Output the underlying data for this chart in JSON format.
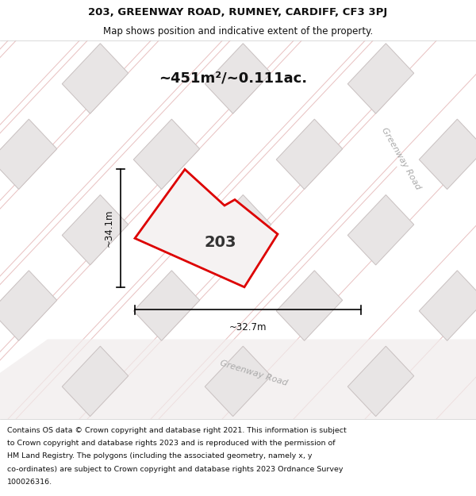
{
  "title_line1": "203, GREENWAY ROAD, RUMNEY, CARDIFF, CF3 3PJ",
  "title_line2": "Map shows position and indicative extent of the property.",
  "footer_lines": [
    "Contains OS data © Crown copyright and database right 2021. This information is subject",
    "to Crown copyright and database rights 2023 and is reproduced with the permission of",
    "HM Land Registry. The polygons (including the associated geometry, namely x, y",
    "co-ordinates) are subject to Crown copyright and database rights 2023 Ordnance Survey",
    "100026316."
  ],
  "area_label": "~451m²/~0.111ac.",
  "number_label": "203",
  "dim_width": "~32.7m",
  "dim_height": "~34.1m",
  "map_bg": "#f8f5f5",
  "building_fill": "#e8e5e5",
  "building_stroke": "#c8c0c0",
  "road_line_color": "#e8c0c0",
  "property_fill": "#f5f2f2",
  "property_stroke": "#dd0000",
  "text_color": "#111111",
  "road_text_color": "#aaaaaa",
  "title_fontsize": 9.5,
  "subtitle_fontsize": 8.5,
  "area_fontsize": 13,
  "number_fontsize": 14,
  "dim_fontsize": 8.5,
  "footer_fontsize": 6.8
}
